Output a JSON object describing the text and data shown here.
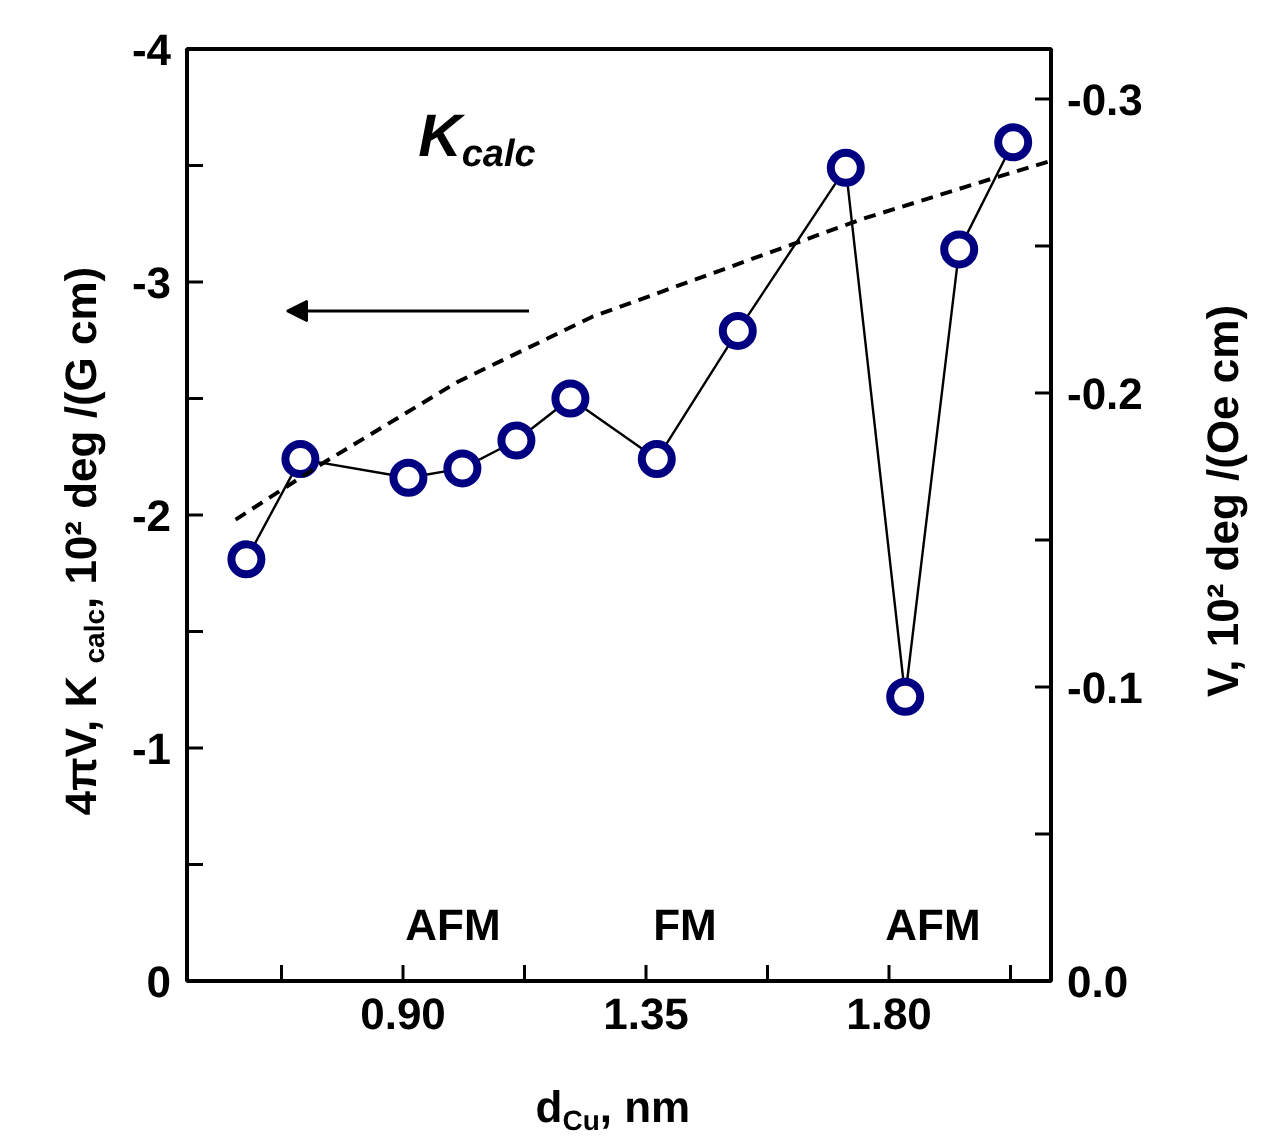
{
  "chart_data": {
    "type": "line",
    "xlabel": "d$_{Cu}$,  nm",
    "ylabel": "4πV,  K$_{calc}$,  10² deg /(G cm)",
    "y2label": "V, 10² deg /(Oe cm)",
    "x": [
      0.61,
      0.71,
      0.91,
      1.01,
      1.11,
      1.21,
      1.37,
      1.52,
      1.72,
      1.83,
      1.93,
      2.03
    ],
    "series": [
      {
        "color": "#000080",
        "marker": "circle",
        "line_style": "solid",
        "values": [
          -1.81,
          -2.24,
          -2.16,
          -2.2,
          -2.32,
          -2.5,
          -2.24,
          -2.79,
          -3.49,
          -1.22,
          -3.14,
          -3.6
        ]
      },
      {
        "color": "#000000",
        "marker": "none",
        "line_style": "dashed",
        "x": [
          0.59,
          0.75,
          1.0,
          1.25,
          1.5,
          1.75,
          2.0,
          2.1
        ],
        "values": [
          -1.98,
          -2.22,
          -2.57,
          -2.85,
          -3.06,
          -3.27,
          -3.45,
          -3.52
        ]
      }
    ],
    "xlim": [
      0.5,
      2.1
    ],
    "xticks": [
      {
        "value": 0.675,
        "label": null
      },
      {
        "value": 0.9,
        "label": "0.90"
      },
      {
        "value": 1.125,
        "label": null
      },
      1.35,
      {
        "value": 1.575,
        "label": null
      },
      {
        "value": 1.8,
        "label": "1.80"
      },
      {
        "value": 2.025,
        "label": null
      }
    ],
    "ylim": [
      0,
      -4
    ],
    "yticks": [
      0,
      {
        "value": -0.5,
        "label": null
      },
      -1,
      {
        "value": -1.5,
        "label": null
      },
      -2,
      {
        "value": -2.5,
        "label": null
      },
      -3,
      {
        "value": -3.5,
        "label": null
      },
      -4
    ],
    "y2lim": [
      0,
      -0.317
    ],
    "y2ticks": [
      {
        "value": 0,
        "label": "0.0"
      },
      {
        "value": -0.05,
        "label": null
      },
      -0.1,
      {
        "value": -0.15,
        "label": null
      },
      -0.2,
      {
        "value": -0.25,
        "label": null
      },
      -0.3
    ],
    "grid": false,
    "annotations": [
      "K$_{calc}$",
      "AFM",
      "FM",
      "AFM"
    ]
  }
}
